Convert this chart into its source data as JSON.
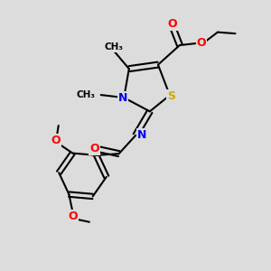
{
  "background_color": "#dcdcdc",
  "bond_color": "#000000",
  "bond_width": 1.5,
  "atom_colors": {
    "O": "#ff0000",
    "N": "#0000ee",
    "S": "#ccaa00",
    "C": "#000000"
  },
  "font_size_atom": 9.0,
  "font_size_small": 7.5
}
